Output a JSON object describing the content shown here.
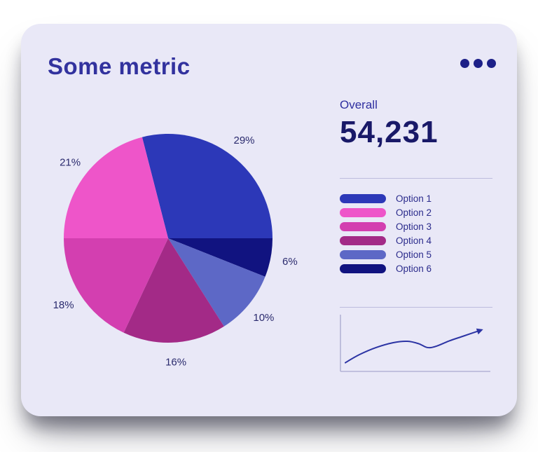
{
  "card": {
    "title": "Some metric",
    "menu_icon": "ellipsis-icon"
  },
  "overall": {
    "label": "Overall",
    "value": "54,231"
  },
  "colors": {
    "card_background": "#e9e8f7",
    "title_text": "#32329e",
    "value_text": "#191968",
    "divider": "#bdbcdd",
    "percent_label_text": "#2b2b6e",
    "legend_label_text": "#2b2b8c",
    "menu_dots": "#1d2088"
  },
  "chart_data": [
    {
      "type": "pie",
      "labels": [
        "Option 1",
        "Option 2",
        "Option 3",
        "Option 4",
        "Option 5",
        "Option 6"
      ],
      "values": [
        29,
        21,
        18,
        16,
        10,
        6
      ],
      "percent_labels": [
        "29%",
        "21%",
        "18%",
        "16%",
        "10%",
        "6%"
      ],
      "colors": [
        "#2c38b8",
        "#ee55c9",
        "#d33fb0",
        "#a32a87",
        "#5d68c6",
        "#111380"
      ],
      "clockwise_order": [
        0,
        5,
        4,
        3,
        2,
        1
      ],
      "start_angle_deg": -14.4,
      "direction": "clockwise",
      "legend_position": "right"
    },
    {
      "type": "line",
      "name": "trend-sparkline",
      "x": [
        0,
        10,
        22,
        34,
        44,
        52,
        58,
        64,
        74,
        84,
        96
      ],
      "y": [
        8,
        25,
        40,
        50,
        53,
        48,
        40,
        42,
        54,
        64,
        76
      ],
      "ylim": [
        0,
        100
      ],
      "color": "#2c34a4",
      "axis_color": "#b4b3d6",
      "arrow": true,
      "axes": [
        "left",
        "bottom"
      ]
    }
  ]
}
